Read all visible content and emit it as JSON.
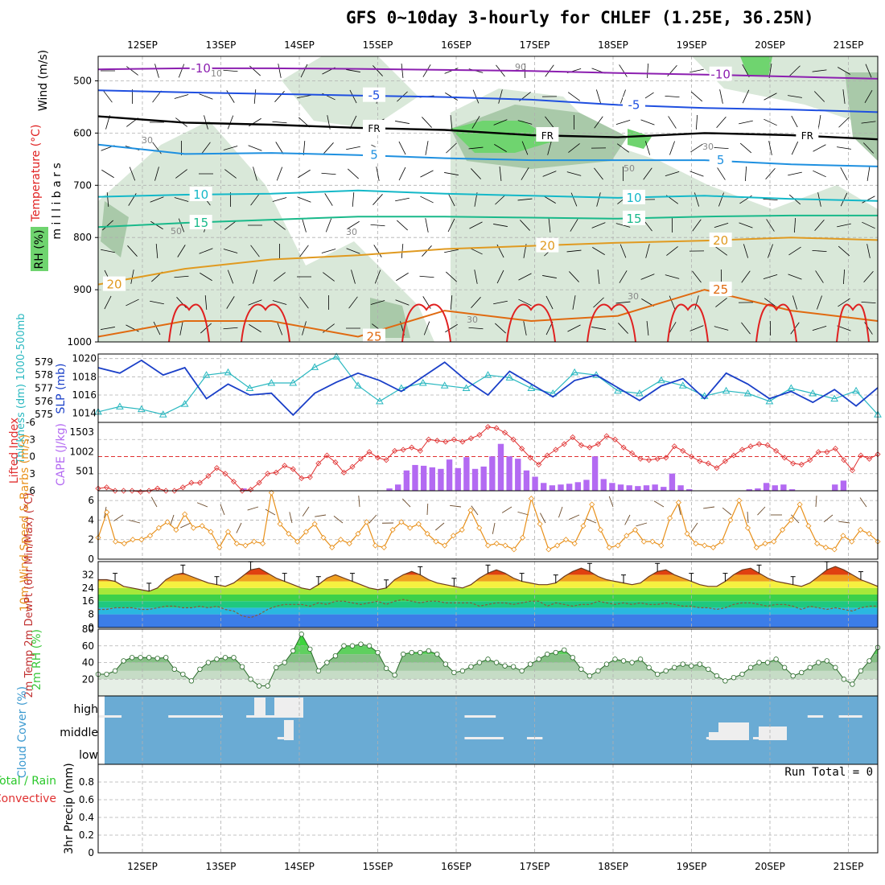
{
  "title": "GFS 0~10day 3-hourly for CHLEF (1.25E, 36.25N)",
  "colors": {
    "frame": "#000000",
    "grid": "#b0b0b0",
    "rh_fill_light": "#d9e8d9",
    "rh_fill_mid": "#a9c9a9",
    "rh_fill_dark": "#6fd46f",
    "temp_minus10": "#8c1fb0",
    "temp_minus5": "#1f4fe0",
    "temp_0": "#000000",
    "temp_5": "#1e90e0",
    "temp_10": "#14b8c8",
    "temp_15": "#19b98a",
    "temp_20": "#e09a20",
    "temp_25": "#e06a10",
    "temp_30": "#e02020",
    "slp": "#1a3fc8",
    "thickness": "#2ab8c0",
    "cape": "#b36af2",
    "lifted": "#e03030",
    "wind10m": "#e8901a",
    "rh2m": "#3cc83c",
    "cloud": "#6aabd4",
    "cloud_gap": "#eeeeee"
  },
  "chart_data": [
    {
      "id": "upper-air",
      "type": "heatmap",
      "ylabel": "m i l l i b a r s",
      "y_ticks": [
        "500",
        "600",
        "700",
        "800",
        "900",
        "1000"
      ],
      "legend": [
        "RH (%)",
        "Temperature (°C)",
        "Wind (m/s)"
      ],
      "x_ticks": [
        "12SEP",
        "13SEP",
        "14SEP",
        "15SEP",
        "16SEP",
        "17SEP",
        "18SEP",
        "19SEP",
        "20SEP",
        "21SEP"
      ],
      "isotherms": [
        {
          "label": "-10",
          "pressure": [
            478,
            476,
            476,
            477,
            479,
            481,
            485,
            488,
            492,
            496
          ],
          "label_positions": [
            1,
            7
          ]
        },
        {
          "label": "-5",
          "pressure": [
            518,
            522,
            525,
            528,
            531,
            536,
            546,
            552,
            555,
            560
          ],
          "label_positions": [
            3,
            6
          ]
        },
        {
          "label": "FR",
          "pressure": [
            568,
            580,
            584,
            590,
            594,
            604,
            608,
            600,
            604,
            612
          ],
          "label_positions": [
            3,
            5,
            8
          ]
        },
        {
          "label": "5",
          "pressure": [
            622,
            640,
            638,
            642,
            648,
            652,
            652,
            652,
            660,
            664
          ],
          "label_positions": [
            3,
            7
          ]
        },
        {
          "label": "10",
          "pressure": [
            722,
            718,
            716,
            710,
            716,
            720,
            724,
            720,
            726,
            730
          ],
          "label_positions": [
            1,
            6
          ]
        },
        {
          "label": "15",
          "pressure": [
            780,
            772,
            766,
            760,
            760,
            762,
            764,
            760,
            758,
            758
          ],
          "label_positions": [
            1,
            6
          ]
        },
        {
          "label": "20",
          "pressure": [
            890,
            860,
            842,
            834,
            822,
            816,
            810,
            806,
            800,
            805
          ],
          "label_positions": [
            0,
            5,
            7
          ]
        },
        {
          "label": "25",
          "pressure": [
            990,
            960,
            960,
            990,
            940,
            960,
            950,
            900,
            940,
            960
          ],
          "label_positions": [
            3,
            7
          ]
        }
      ],
      "rh_labels": [
        "10",
        "30",
        "50",
        "30",
        "90",
        "30",
        "50",
        "30",
        "30"
      ]
    },
    {
      "id": "slp-thickness",
      "type": "line",
      "ylabel_left": "Thickness (dm) 1000-500mb",
      "ylabel_right": "SLP (mb)",
      "slp_ticks": [
        "1020",
        "1018",
        "1016",
        "1014"
      ],
      "thickness_ticks": [
        "579",
        "578",
        "577",
        "576",
        "575"
      ],
      "slp_ylim": [
        1013,
        1020.5
      ],
      "thickness_ylim": [
        574.4,
        579.6
      ],
      "slp": [
        1019.0,
        1018.4,
        1019.8,
        1018.2,
        1019.0,
        1015.6,
        1017.2,
        1016.0,
        1016.2,
        1013.8,
        1016.2,
        1017.4,
        1018.4,
        1017.6,
        1016.4,
        1018.0,
        1019.6,
        1017.6,
        1016.0,
        1018.6,
        1017.2,
        1015.8,
        1017.6,
        1018.2,
        1016.8,
        1015.4,
        1017.0,
        1017.8,
        1015.6,
        1018.4,
        1017.2,
        1015.6,
        1016.4,
        1015.2,
        1016.6,
        1014.8,
        1016.8
      ],
      "thickness": [
        575.2,
        575.6,
        575.4,
        575.0,
        575.8,
        578.0,
        578.2,
        577.0,
        577.4,
        577.4,
        578.6,
        579.4,
        577.2,
        576.0,
        577.0,
        577.4,
        577.2,
        577.0,
        578.0,
        577.8,
        577.0,
        576.6,
        578.2,
        578.0,
        576.8,
        576.6,
        577.6,
        577.2,
        576.4,
        576.8,
        576.6,
        576.0,
        577.0,
        576.6,
        576.2,
        576.8,
        575.0
      ]
    },
    {
      "id": "cape-lifted",
      "type": "bar",
      "ylabel_left": "Lifted Index",
      "ylabel_right": "CAPE (J/kg)",
      "li_ticks": [
        "-6",
        "-3",
        "0",
        "3",
        "6"
      ],
      "cape_ticks": [
        "1503",
        "1002",
        "501"
      ],
      "cape_ylim": [
        0,
        1750
      ],
      "li_ylim": [
        6,
        -6
      ],
      "cape": [
        0,
        0,
        0,
        0,
        0,
        0,
        0,
        0,
        0,
        0,
        0,
        0,
        0,
        0,
        0,
        0,
        0,
        60,
        0,
        0,
        0,
        0,
        0,
        0,
        0,
        0,
        0,
        0,
        0,
        0,
        0,
        0,
        0,
        0,
        60,
        160,
        520,
        660,
        640,
        600,
        560,
        800,
        580,
        860,
        560,
        620,
        880,
        1200,
        880,
        820,
        520,
        360,
        200,
        140,
        160,
        180,
        220,
        280,
        880,
        300,
        200,
        160,
        140,
        120,
        140,
        160,
        100,
        440,
        140,
        40,
        0,
        0,
        0,
        0,
        0,
        0,
        40,
        60,
        200,
        140,
        160,
        40,
        0,
        0,
        0,
        0,
        160,
        260,
        0,
        0,
        0,
        0
      ],
      "lifted": [
        5.6,
        5.4,
        6.0,
        6.0,
        6.0,
        6.2,
        6.0,
        5.6,
        6.0,
        6.0,
        5.4,
        4.6,
        4.6,
        3.4,
        2.0,
        3.0,
        4.4,
        6.0,
        5.8,
        4.6,
        3.0,
        2.8,
        1.6,
        2.2,
        3.8,
        3.6,
        1.2,
        -0.2,
        1.0,
        2.8,
        1.8,
        0.4,
        -0.8,
        0.2,
        0.6,
        -1.0,
        -1.2,
        -1.6,
        -1.0,
        -3.0,
        -2.8,
        -2.6,
        -3.0,
        -2.6,
        -3.2,
        -3.8,
        -5.2,
        -5.0,
        -4.2,
        -3.0,
        -1.4,
        0.2,
        1.4,
        -0.2,
        -1.2,
        -2.2,
        -3.4,
        -2.0,
        -1.6,
        -2.2,
        -3.6,
        -3.0,
        -1.6,
        -0.6,
        0.4,
        0.6,
        0.4,
        0.2,
        -1.8,
        -1.0,
        0.0,
        0.8,
        1.2,
        2.0,
        0.8,
        -0.2,
        -1.2,
        -1.8,
        -2.2,
        -2.0,
        -1.0,
        0.2,
        1.2,
        1.4,
        0.6,
        -0.8,
        -0.8,
        -1.4,
        0.6,
        2.4,
        -0.2,
        0.4,
        -0.4
      ]
    },
    {
      "id": "wind10m",
      "type": "line",
      "ylabel": "10m Wind Speed & Barbs (m/s)",
      "y_ticks": [
        "6",
        "4",
        "2",
        "0"
      ],
      "ylim": [
        0,
        7
      ],
      "values": [
        2.2,
        4.8,
        1.8,
        1.6,
        2.0,
        2.0,
        2.4,
        3.2,
        3.8,
        3.0,
        4.6,
        3.2,
        3.4,
        2.8,
        1.2,
        2.8,
        1.6,
        1.4,
        1.8,
        1.6,
        6.8,
        3.6,
        2.6,
        1.8,
        2.8,
        3.6,
        2.2,
        1.2,
        2.0,
        1.6,
        2.6,
        3.8,
        1.4,
        1.2,
        3.0,
        3.8,
        3.2,
        3.6,
        2.6,
        1.8,
        1.4,
        2.4,
        3.0,
        5.0,
        3.2,
        1.4,
        1.6,
        1.4,
        1.0,
        2.2,
        6.2,
        3.6,
        1.0,
        1.4,
        2.0,
        1.6,
        3.4,
        5.6,
        3.0,
        1.2,
        1.4,
        2.4,
        3.0,
        1.8,
        1.8,
        1.4,
        4.2,
        5.8,
        2.6,
        1.6,
        1.4,
        1.2,
        1.8,
        4.0,
        6.0,
        3.2,
        1.2,
        1.6,
        1.8,
        3.0,
        4.0,
        5.6,
        3.4,
        1.6,
        1.2,
        1.0,
        2.4,
        1.8,
        3.0,
        2.6,
        1.8
      ]
    },
    {
      "id": "temp2m",
      "type": "area",
      "ylabel": "2m Temp 2m DewPt (6hr Min/Max) (°C)",
      "y_ticks": [
        "32",
        "24",
        "16",
        "8",
        "0"
      ],
      "ylim": [
        0,
        40
      ],
      "temp": [
        29,
        29,
        28,
        25,
        24,
        23,
        22,
        24,
        29,
        32,
        33,
        31,
        29,
        27,
        26,
        25,
        27,
        31,
        35,
        36,
        33,
        30,
        28,
        26,
        24,
        23,
        26,
        30,
        32,
        30,
        28,
        26,
        24,
        23,
        24,
        29,
        32,
        34,
        32,
        29,
        27,
        26,
        25,
        24,
        26,
        30,
        33,
        35,
        33,
        30,
        28,
        27,
        26,
        26,
        27,
        31,
        34,
        36,
        34,
        31,
        29,
        28,
        27,
        26,
        27,
        31,
        34,
        35,
        32,
        30,
        28,
        26,
        25,
        25,
        28,
        32,
        35,
        36,
        33,
        30,
        28,
        27,
        26,
        25,
        27,
        31,
        35,
        37,
        35,
        32,
        29,
        27,
        25
      ],
      "dewpt": [
        11,
        11,
        12,
        12,
        12,
        11,
        11,
        12,
        13,
        13,
        12,
        12,
        13,
        12,
        13,
        11,
        10,
        7,
        6,
        8,
        11,
        13,
        14,
        14,
        14,
        13,
        15,
        14,
        16,
        16,
        15,
        14,
        15,
        16,
        14,
        16,
        17,
        16,
        15,
        16,
        16,
        15,
        15,
        15,
        15,
        13,
        14,
        15,
        15,
        14,
        15,
        16,
        16,
        13,
        15,
        14,
        13,
        14,
        14,
        16,
        15,
        14,
        15,
        14,
        15,
        14,
        14,
        15,
        14,
        13,
        13,
        12,
        12,
        11,
        12,
        14,
        15,
        15,
        14,
        13,
        14,
        14,
        13,
        11,
        13,
        12,
        11,
        12,
        11,
        10,
        12,
        13,
        13
      ]
    },
    {
      "id": "rh2m",
      "type": "area",
      "ylabel": "2m RH (%)",
      "y_ticks": [
        "80",
        "60",
        "40",
        "20"
      ],
      "ylim": [
        0,
        80
      ],
      "values": [
        26,
        26,
        30,
        42,
        46,
        46,
        46,
        45,
        46,
        32,
        26,
        18,
        32,
        40,
        44,
        46,
        46,
        35,
        20,
        12,
        12,
        34,
        40,
        54,
        74,
        56,
        30,
        40,
        48,
        60,
        60,
        62,
        60,
        52,
        33,
        25,
        50,
        52,
        52,
        54,
        50,
        38,
        28,
        30,
        35,
        40,
        44,
        40,
        36,
        35,
        30,
        38,
        44,
        50,
        52,
        55,
        46,
        32,
        24,
        30,
        38,
        44,
        42,
        40,
        44,
        34,
        26,
        30,
        34,
        38,
        36,
        38,
        32,
        24,
        18,
        22,
        26,
        34,
        40,
        40,
        44,
        34,
        24,
        28,
        34,
        40,
        42,
        34,
        20,
        14,
        30,
        42,
        58
      ]
    },
    {
      "id": "cloud",
      "type": "heatmap",
      "ylabel": "Cloud Cover (%)",
      "levels": [
        "high",
        "middle",
        "low"
      ],
      "high_gaps": [
        [
          0,
          0.03
        ],
        [
          0.09,
          0.16
        ],
        [
          0.19,
          0.21
        ],
        [
          0.21,
          0.25
        ],
        [
          0.47,
          0.51
        ],
        [
          0.91,
          0.93
        ],
        [
          0.95,
          0.98
        ]
      ],
      "middle_gaps": [
        [
          0.23,
          0.24
        ],
        [
          0.47,
          0.52
        ],
        [
          0.55,
          0.56
        ],
        [
          0.56,
          0.57
        ],
        [
          0.78,
          0.83
        ],
        [
          0.84,
          0.87
        ],
        [
          0.87,
          0.88
        ]
      ]
    },
    {
      "id": "precip",
      "type": "bar",
      "ylabel": "3hr Precip (mm)",
      "legend_total": "Total / Rain",
      "legend_conv": "Convective",
      "y_ticks": [
        "0.8",
        "0.6",
        "0.4",
        "0.2",
        "0"
      ],
      "ylim": [
        0,
        1
      ],
      "run_total_label": "Run Total = 0",
      "values": []
    }
  ],
  "x_ticks": [
    "12SEP",
    "13SEP",
    "14SEP",
    "15SEP",
    "16SEP",
    "17SEP",
    "18SEP",
    "19SEP",
    "20SEP",
    "21SEP"
  ]
}
